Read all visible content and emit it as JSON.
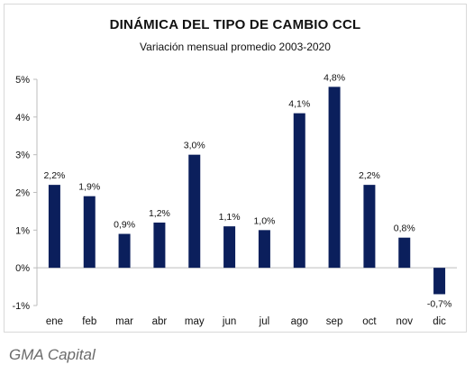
{
  "source": "GMA Capital",
  "colors": {
    "bar": "#0b1f5c",
    "axis": "#bdbdbd",
    "text": "#111111"
  },
  "chart_data": {
    "type": "bar",
    "title": "DINÁMICA DEL TIPO DE CAMBIO CCL",
    "subtitle": "Variación mensual promedio 2003-2020",
    "categories": [
      "ene",
      "feb",
      "mar",
      "abr",
      "may",
      "jun",
      "jul",
      "ago",
      "sep",
      "oct",
      "nov",
      "dic"
    ],
    "values": [
      2.2,
      1.9,
      0.9,
      1.2,
      3.0,
      1.1,
      1.0,
      4.1,
      4.8,
      2.2,
      0.8,
      -0.7
    ],
    "data_labels": [
      "2,2%",
      "1,9%",
      "0,9%",
      "1,2%",
      "3,0%",
      "1,1%",
      "1,0%",
      "4,1%",
      "4,8%",
      "2,2%",
      "0,8%",
      "-0,7%"
    ],
    "ylim": [
      -1,
      5
    ],
    "yticks": [
      -1,
      0,
      1,
      2,
      3,
      4,
      5
    ],
    "ytick_labels": [
      "-1%",
      "0%",
      "1%",
      "2%",
      "3%",
      "4%",
      "5%"
    ],
    "grid": false,
    "legend": "none"
  }
}
